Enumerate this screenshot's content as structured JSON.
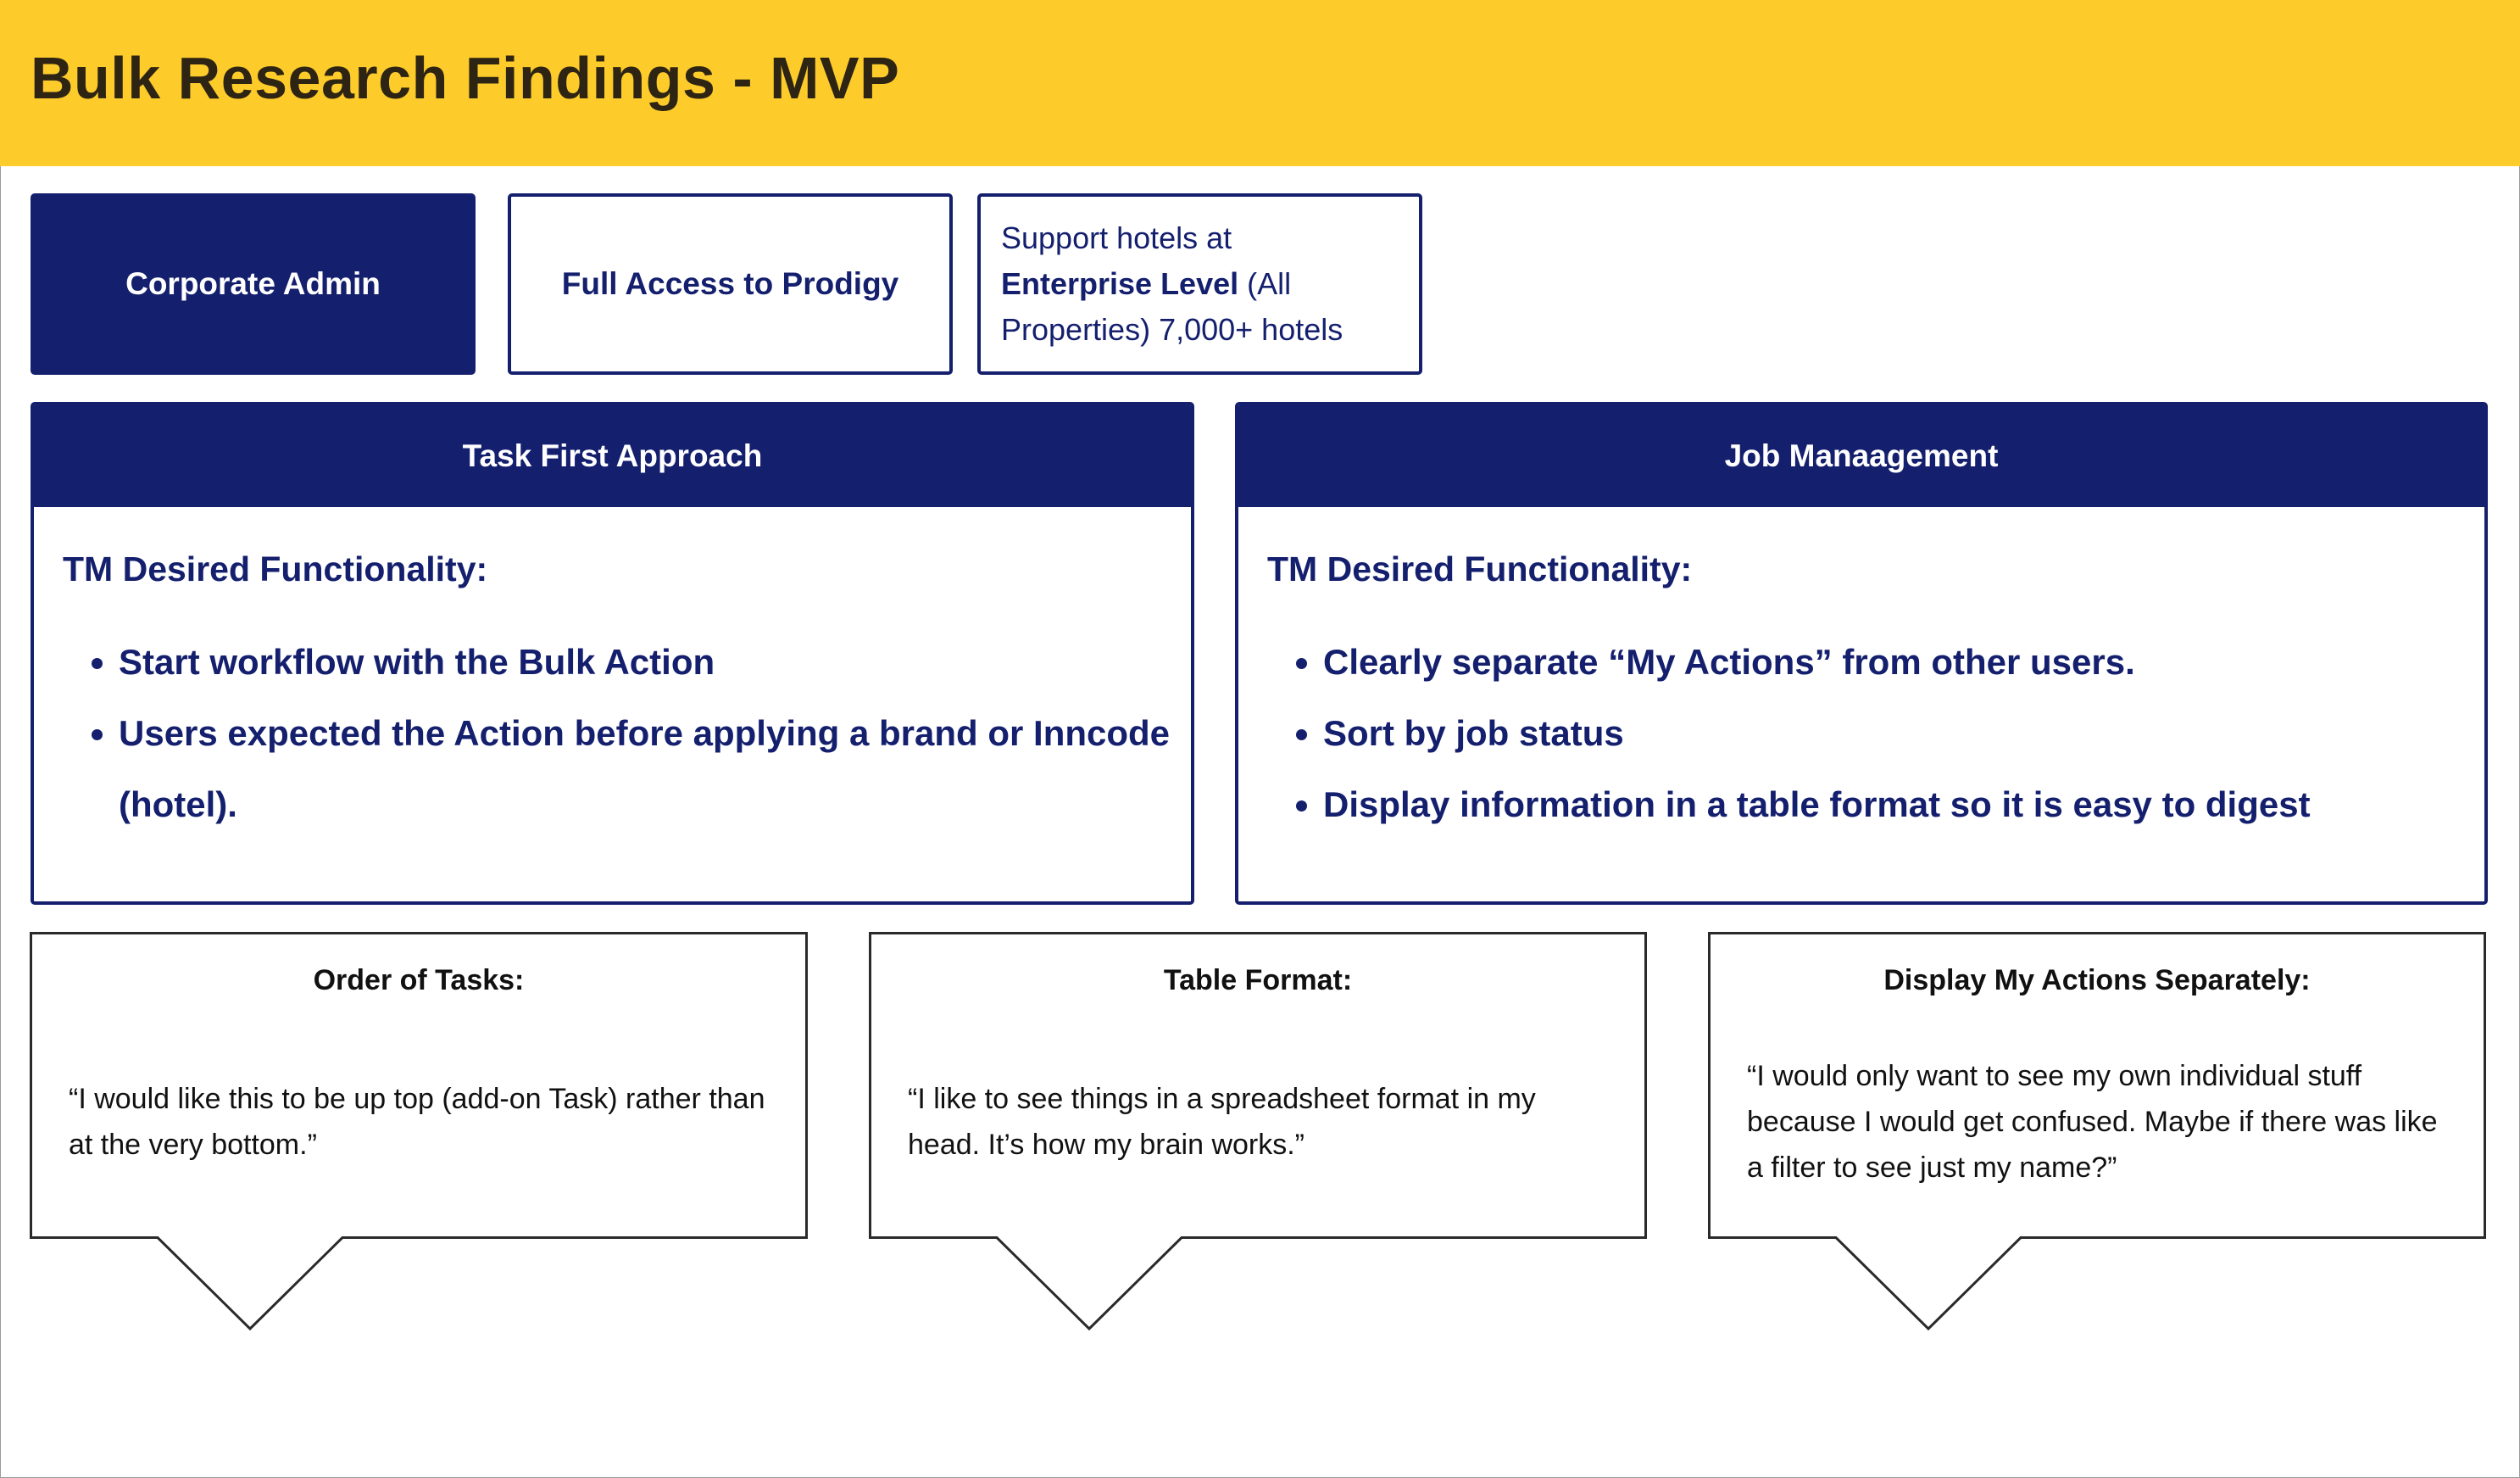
{
  "header": {
    "title": "Bulk Research Findings - MVP"
  },
  "tags": {
    "admin": "Corporate Admin",
    "access": "Full Access to Prodigy",
    "support_prefix": "Support hotels at",
    "support_bold": "Enterprise Level",
    "support_suffix": "(All Properties) 7,000+ hotels"
  },
  "panels": [
    {
      "title": "Task First Approach",
      "subtitle": "TM Desired Functionality:",
      "items": [
        "Start workflow with the Bulk Action",
        "Users expected the Action before applying a brand or Inncode (hotel)."
      ]
    },
    {
      "title": "Job Manaagement",
      "subtitle": "TM Desired Functionality:",
      "items": [
        "Clearly separate “My Actions” from other users.",
        "Sort by job status",
        "Display information in a table format so it is easy to digest"
      ]
    }
  ],
  "quotes": [
    {
      "title": "Order of Tasks:",
      "text": "“I would like this to be up top (add-on Task) rather than at the very bottom.”"
    },
    {
      "title": "Table Format:",
      "text": "“I like to see things in a spreadsheet format in my head. It’s how my brain works.”"
    },
    {
      "title": "Display My Actions Separately:",
      "text": "“I would only want to see my own individual stuff because I would get confused. Maybe if there was like a filter to see just my name?”"
    }
  ],
  "colors": {
    "header_bg": "#fdcc2a",
    "navy": "#141f6e",
    "title_text": "#2e2414"
  }
}
